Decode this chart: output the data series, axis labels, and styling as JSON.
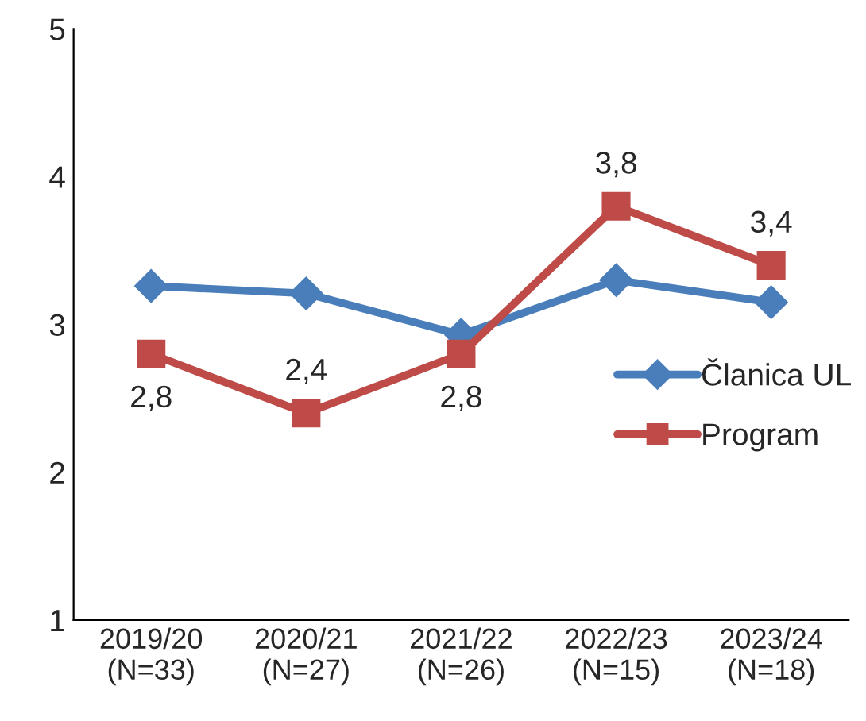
{
  "chart_data": {
    "type": "line",
    "categories": [
      "2019/20\n(N=33)",
      "2020/21\n(N=27)",
      "2021/22\n(N=26)",
      "2022/23\n(N=15)",
      "2023/24\n(N=18)"
    ],
    "series": [
      {
        "name": "Članica UL",
        "color": "#4a7ebb",
        "marker": "diamond",
        "values": [
          3.26,
          3.21,
          2.93,
          3.3,
          3.15
        ]
      },
      {
        "name": "Program",
        "color": "#be4b48",
        "marker": "square",
        "values": [
          2.8,
          2.4,
          2.8,
          3.8,
          3.4
        ],
        "value_labels": [
          "2,8",
          "2,4",
          "2,8",
          "3,8",
          "3,4"
        ]
      }
    ],
    "ylim": [
      1,
      5
    ],
    "yticks": [
      1,
      2,
      3,
      4,
      5
    ],
    "grid": false,
    "legend": "right",
    "line_style": "solid"
  }
}
